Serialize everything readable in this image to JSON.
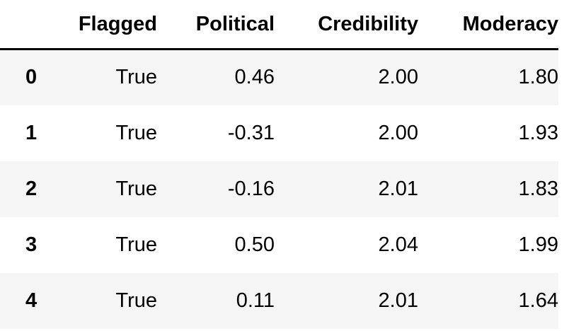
{
  "table": {
    "columns": [
      "Flagged",
      "Political",
      "Credibility",
      "Moderacy"
    ],
    "rows": [
      {
        "index": "0",
        "values": [
          "True",
          "0.46",
          "2.00",
          "1.80"
        ]
      },
      {
        "index": "1",
        "values": [
          "True",
          "-0.31",
          "2.00",
          "1.93"
        ]
      },
      {
        "index": "2",
        "values": [
          "True",
          "-0.16",
          "2.01",
          "1.83"
        ]
      },
      {
        "index": "3",
        "values": [
          "True",
          "0.50",
          "2.04",
          "1.99"
        ]
      },
      {
        "index": "4",
        "values": [
          "True",
          "0.11",
          "2.01",
          "1.64"
        ]
      }
    ]
  }
}
